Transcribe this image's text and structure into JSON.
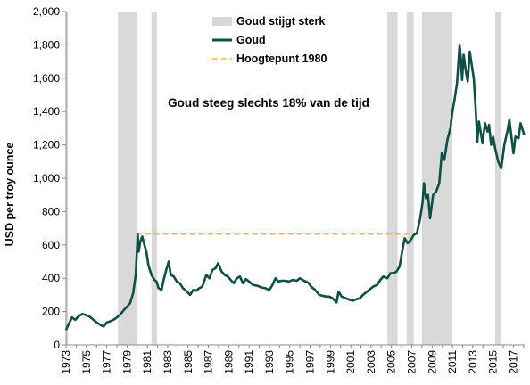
{
  "chart_data": {
    "type": "line",
    "title": "",
    "ylabel": "USD per troy ounce",
    "xlabel": "",
    "ylim": [
      0,
      2000
    ],
    "yticks": [
      0,
      200,
      400,
      600,
      800,
      1000,
      1200,
      1400,
      1600,
      1800,
      2000
    ],
    "ytick_labels": [
      "0",
      "200",
      "400",
      "600",
      "800",
      "1,000",
      "1,200",
      "1,400",
      "1,600",
      "1,800",
      "2,000"
    ],
    "xlim": [
      1973.0,
      2018.1
    ],
    "xtick_labels": [
      "1973",
      "1975",
      "1977",
      "1979",
      "1981",
      "1983",
      "1985",
      "1987",
      "1989",
      "1991",
      "1993",
      "1995",
      "1997",
      "1999",
      "2001",
      "2003",
      "2005",
      "2007",
      "2009",
      "2011",
      "2013",
      "2015",
      "2017"
    ],
    "annotation": "Goud steeg slechts 18% van de tijd",
    "legend": {
      "position": "top-center",
      "entries": [
        {
          "label": "Goud stijgt sterk",
          "kind": "band",
          "color": "#d9d9d9"
        },
        {
          "label": "Goud",
          "kind": "line",
          "color": "#0f5046"
        },
        {
          "label": "Hoogtepunt 1980",
          "kind": "dashed",
          "color": "#f5b942"
        }
      ]
    },
    "shaded_periods": [
      [
        1973.0,
        1973.2
      ],
      [
        1978.1,
        1979.95
      ],
      [
        1981.4,
        1981.95
      ],
      [
        2004.6,
        2005.6
      ],
      [
        2006.5,
        2007.2
      ],
      [
        2008.0,
        2011.0
      ],
      [
        2015.2,
        2015.8
      ]
    ],
    "reference_line": {
      "label": "Hoogtepunt 1980",
      "y": 665,
      "x_start": 1979.9,
      "x_end": 2006.9
    },
    "series": [
      {
        "name": "Goud",
        "color": "#0f5046",
        "points": [
          [
            1973.0,
            90
          ],
          [
            1973.3,
            130
          ],
          [
            1973.6,
            165
          ],
          [
            1973.9,
            150
          ],
          [
            1974.2,
            170
          ],
          [
            1974.6,
            185
          ],
          [
            1974.9,
            180
          ],
          [
            1975.3,
            170
          ],
          [
            1975.7,
            150
          ],
          [
            1976.0,
            135
          ],
          [
            1976.4,
            120
          ],
          [
            1976.7,
            110
          ],
          [
            1977.0,
            135
          ],
          [
            1977.5,
            145
          ],
          [
            1977.9,
            160
          ],
          [
            1978.3,
            180
          ],
          [
            1978.7,
            210
          ],
          [
            1979.0,
            230
          ],
          [
            1979.3,
            250
          ],
          [
            1979.6,
            310
          ],
          [
            1979.85,
            420
          ],
          [
            1980.0,
            600
          ],
          [
            1980.05,
            665
          ],
          [
            1980.15,
            560
          ],
          [
            1980.3,
            620
          ],
          [
            1980.5,
            650
          ],
          [
            1980.7,
            600
          ],
          [
            1980.9,
            560
          ],
          [
            1981.1,
            480
          ],
          [
            1981.4,
            420
          ],
          [
            1981.7,
            390
          ],
          [
            1981.9,
            380
          ],
          [
            1982.1,
            340
          ],
          [
            1982.4,
            330
          ],
          [
            1982.6,
            390
          ],
          [
            1982.85,
            450
          ],
          [
            1983.1,
            500
          ],
          [
            1983.3,
            420
          ],
          [
            1983.6,
            410
          ],
          [
            1983.9,
            380
          ],
          [
            1984.2,
            370
          ],
          [
            1984.5,
            340
          ],
          [
            1984.9,
            320
          ],
          [
            1985.2,
            300
          ],
          [
            1985.5,
            330
          ],
          [
            1985.8,
            325
          ],
          [
            1986.1,
            340
          ],
          [
            1986.4,
            350
          ],
          [
            1986.8,
            420
          ],
          [
            1987.1,
            400
          ],
          [
            1987.4,
            450
          ],
          [
            1987.7,
            460
          ],
          [
            1987.95,
            490
          ],
          [
            1988.3,
            440
          ],
          [
            1988.6,
            420
          ],
          [
            1988.9,
            410
          ],
          [
            1989.2,
            390
          ],
          [
            1989.5,
            370
          ],
          [
            1989.8,
            400
          ],
          [
            1990.1,
            410
          ],
          [
            1990.4,
            370
          ],
          [
            1990.7,
            395
          ],
          [
            1991.0,
            380
          ],
          [
            1991.4,
            360
          ],
          [
            1991.8,
            355
          ],
          [
            1992.2,
            345
          ],
          [
            1992.6,
            340
          ],
          [
            1993.0,
            330
          ],
          [
            1993.3,
            360
          ],
          [
            1993.6,
            400
          ],
          [
            1993.9,
            380
          ],
          [
            1994.2,
            385
          ],
          [
            1994.6,
            385
          ],
          [
            1994.9,
            380
          ],
          [
            1995.3,
            390
          ],
          [
            1995.7,
            385
          ],
          [
            1996.0,
            400
          ],
          [
            1996.4,
            385
          ],
          [
            1996.8,
            375
          ],
          [
            1997.1,
            350
          ],
          [
            1997.5,
            330
          ],
          [
            1997.9,
            300
          ],
          [
            1998.2,
            295
          ],
          [
            1998.6,
            290
          ],
          [
            1998.9,
            290
          ],
          [
            1999.2,
            280
          ],
          [
            1999.6,
            255
          ],
          [
            1999.8,
            320
          ],
          [
            2000.1,
            290
          ],
          [
            2000.5,
            280
          ],
          [
            2000.9,
            270
          ],
          [
            2001.2,
            265
          ],
          [
            2001.6,
            275
          ],
          [
            2001.9,
            280
          ],
          [
            2002.2,
            300
          ],
          [
            2002.6,
            320
          ],
          [
            2002.9,
            335
          ],
          [
            2003.2,
            350
          ],
          [
            2003.6,
            360
          ],
          [
            2003.9,
            390
          ],
          [
            2004.2,
            410
          ],
          [
            2004.6,
            400
          ],
          [
            2004.9,
            430
          ],
          [
            2005.2,
            430
          ],
          [
            2005.5,
            440
          ],
          [
            2005.8,
            470
          ],
          [
            2006.05,
            560
          ],
          [
            2006.3,
            640
          ],
          [
            2006.6,
            610
          ],
          [
            2006.9,
            630
          ],
          [
            2007.2,
            660
          ],
          [
            2007.5,
            670
          ],
          [
            2007.8,
            750
          ],
          [
            2008.05,
            850
          ],
          [
            2008.2,
            970
          ],
          [
            2008.4,
            880
          ],
          [
            2008.6,
            900
          ],
          [
            2008.8,
            760
          ],
          [
            2009.1,
            900
          ],
          [
            2009.4,
            920
          ],
          [
            2009.7,
            970
          ],
          [
            2009.95,
            1150
          ],
          [
            2010.2,
            1110
          ],
          [
            2010.5,
            1230
          ],
          [
            2010.8,
            1300
          ],
          [
            2011.0,
            1400
          ],
          [
            2011.2,
            1470
          ],
          [
            2011.45,
            1570
          ],
          [
            2011.7,
            1800
          ],
          [
            2011.85,
            1700
          ],
          [
            2011.95,
            1590
          ],
          [
            2012.1,
            1740
          ],
          [
            2012.3,
            1650
          ],
          [
            2012.5,
            1580
          ],
          [
            2012.7,
            1760
          ],
          [
            2012.9,
            1680
          ],
          [
            2013.1,
            1600
          ],
          [
            2013.3,
            1400
          ],
          [
            2013.45,
            1220
          ],
          [
            2013.6,
            1340
          ],
          [
            2013.8,
            1270
          ],
          [
            2013.95,
            1210
          ],
          [
            2014.2,
            1330
          ],
          [
            2014.45,
            1280
          ],
          [
            2014.6,
            1320
          ],
          [
            2014.8,
            1200
          ],
          [
            2015.0,
            1250
          ],
          [
            2015.2,
            1180
          ],
          [
            2015.5,
            1100
          ],
          [
            2015.8,
            1060
          ],
          [
            2016.1,
            1200
          ],
          [
            2016.4,
            1280
          ],
          [
            2016.6,
            1350
          ],
          [
            2016.8,
            1250
          ],
          [
            2017.0,
            1150
          ],
          [
            2017.2,
            1250
          ],
          [
            2017.5,
            1240
          ],
          [
            2017.7,
            1330
          ],
          [
            2017.85,
            1300
          ],
          [
            2018.0,
            1270
          ],
          [
            2018.05,
            1260
          ]
        ]
      }
    ]
  }
}
